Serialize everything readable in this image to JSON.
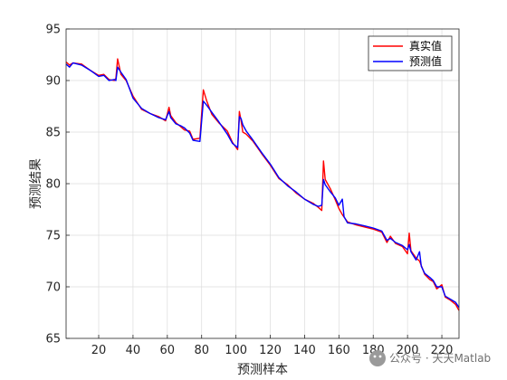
{
  "chart_data": {
    "type": "line",
    "title": "",
    "xlabel": "预测样本",
    "ylabel": "预测结果",
    "xlim": [
      1,
      230
    ],
    "ylim": [
      65,
      95
    ],
    "xticks": [
      20,
      40,
      60,
      80,
      100,
      120,
      140,
      160,
      180,
      200,
      220
    ],
    "yticks": [
      65,
      70,
      75,
      80,
      85,
      90,
      95
    ],
    "grid": true,
    "legend_position": "top-right",
    "series": [
      {
        "name": "真实值",
        "color": "#ff0000",
        "points": [
          [
            1,
            91.8
          ],
          [
            3,
            91.5
          ],
          [
            5,
            91.7
          ],
          [
            10,
            91.6
          ],
          [
            15,
            91.0
          ],
          [
            20,
            90.5
          ],
          [
            23,
            90.6
          ],
          [
            26,
            90.1
          ],
          [
            29,
            90.0
          ],
          [
            30,
            90.2
          ],
          [
            31,
            92.1
          ],
          [
            33,
            90.6
          ],
          [
            36,
            90.0
          ],
          [
            40,
            88.5
          ],
          [
            45,
            87.2
          ],
          [
            50,
            86.8
          ],
          [
            55,
            86.5
          ],
          [
            59,
            86.1
          ],
          [
            61,
            87.4
          ],
          [
            62,
            86.6
          ],
          [
            65,
            85.9
          ],
          [
            68,
            85.5
          ],
          [
            70,
            85.2
          ],
          [
            73,
            85.1
          ],
          [
            75,
            84.3
          ],
          [
            79,
            84.4
          ],
          [
            81,
            89.1
          ],
          [
            83,
            88.0
          ],
          [
            86,
            86.7
          ],
          [
            90,
            85.9
          ],
          [
            95,
            85.1
          ],
          [
            98,
            84.0
          ],
          [
            101,
            83.3
          ],
          [
            102,
            87.0
          ],
          [
            103,
            86.1
          ],
          [
            104,
            85.0
          ],
          [
            106,
            84.8
          ],
          [
            110,
            84.1
          ],
          [
            115,
            82.9
          ],
          [
            120,
            81.8
          ],
          [
            125,
            80.5
          ],
          [
            130,
            79.9
          ],
          [
            135,
            79.1
          ],
          [
            140,
            78.5
          ],
          [
            145,
            78.1
          ],
          [
            148,
            77.7
          ],
          [
            150,
            77.4
          ],
          [
            151,
            82.2
          ],
          [
            152,
            80.4
          ],
          [
            155,
            79.5
          ],
          [
            158,
            78.4
          ],
          [
            160,
            77.6
          ],
          [
            162,
            77.0
          ],
          [
            165,
            76.3
          ],
          [
            170,
            76.0
          ],
          [
            175,
            75.8
          ],
          [
            180,
            75.6
          ],
          [
            185,
            75.3
          ],
          [
            188,
            74.3
          ],
          [
            190,
            74.9
          ],
          [
            193,
            74.2
          ],
          [
            197,
            73.9
          ],
          [
            200,
            73.2
          ],
          [
            201,
            75.2
          ],
          [
            202,
            73.5
          ],
          [
            205,
            72.8
          ],
          [
            207,
            72.5
          ],
          [
            210,
            71.2
          ],
          [
            213,
            70.7
          ],
          [
            215,
            70.5
          ],
          [
            217,
            69.8
          ],
          [
            220,
            70.2
          ],
          [
            222,
            69.0
          ],
          [
            225,
            68.7
          ],
          [
            228,
            68.3
          ],
          [
            230,
            67.7
          ]
        ]
      },
      {
        "name": "预测值",
        "color": "#0000ff",
        "points": [
          [
            1,
            91.6
          ],
          [
            3,
            91.3
          ],
          [
            5,
            91.7
          ],
          [
            10,
            91.5
          ],
          [
            15,
            91.0
          ],
          [
            20,
            90.4
          ],
          [
            23,
            90.5
          ],
          [
            26,
            90.0
          ],
          [
            29,
            90.1
          ],
          [
            30,
            90.0
          ],
          [
            31,
            91.3
          ],
          [
            33,
            90.8
          ],
          [
            36,
            90.1
          ],
          [
            40,
            88.3
          ],
          [
            45,
            87.3
          ],
          [
            50,
            86.8
          ],
          [
            55,
            86.4
          ],
          [
            59,
            86.2
          ],
          [
            61,
            87.0
          ],
          [
            62,
            86.4
          ],
          [
            65,
            85.8
          ],
          [
            68,
            85.6
          ],
          [
            70,
            85.4
          ],
          [
            73,
            84.9
          ],
          [
            75,
            84.2
          ],
          [
            79,
            84.1
          ],
          [
            81,
            88.0
          ],
          [
            83,
            87.6
          ],
          [
            86,
            86.9
          ],
          [
            90,
            86.0
          ],
          [
            95,
            84.8
          ],
          [
            98,
            83.9
          ],
          [
            101,
            83.5
          ],
          [
            102,
            86.5
          ],
          [
            103,
            86.3
          ],
          [
            104,
            85.7
          ],
          [
            106,
            85.1
          ],
          [
            110,
            84.2
          ],
          [
            115,
            83.0
          ],
          [
            120,
            81.9
          ],
          [
            125,
            80.6
          ],
          [
            130,
            79.8
          ],
          [
            135,
            79.2
          ],
          [
            140,
            78.5
          ],
          [
            145,
            78.0
          ],
          [
            148,
            77.8
          ],
          [
            150,
            77.9
          ],
          [
            151,
            80.4
          ],
          [
            152,
            79.9
          ],
          [
            155,
            79.2
          ],
          [
            158,
            78.6
          ],
          [
            160,
            77.9
          ],
          [
            162,
            78.5
          ],
          [
            163,
            76.8
          ],
          [
            165,
            76.2
          ],
          [
            170,
            76.1
          ],
          [
            175,
            75.9
          ],
          [
            180,
            75.7
          ],
          [
            185,
            75.4
          ],
          [
            188,
            74.5
          ],
          [
            190,
            74.7
          ],
          [
            193,
            74.3
          ],
          [
            197,
            74.0
          ],
          [
            200,
            73.6
          ],
          [
            201,
            74.1
          ],
          [
            202,
            73.4
          ],
          [
            205,
            72.6
          ],
          [
            207,
            73.4
          ],
          [
            208,
            72.0
          ],
          [
            210,
            71.3
          ],
          [
            213,
            70.9
          ],
          [
            215,
            70.6
          ],
          [
            217,
            70.0
          ],
          [
            220,
            70.0
          ],
          [
            222,
            69.1
          ],
          [
            225,
            68.8
          ],
          [
            228,
            68.5
          ],
          [
            230,
            68.0
          ]
        ]
      }
    ]
  },
  "watermark": {
    "text": "公众号 · 天天Matlab"
  }
}
